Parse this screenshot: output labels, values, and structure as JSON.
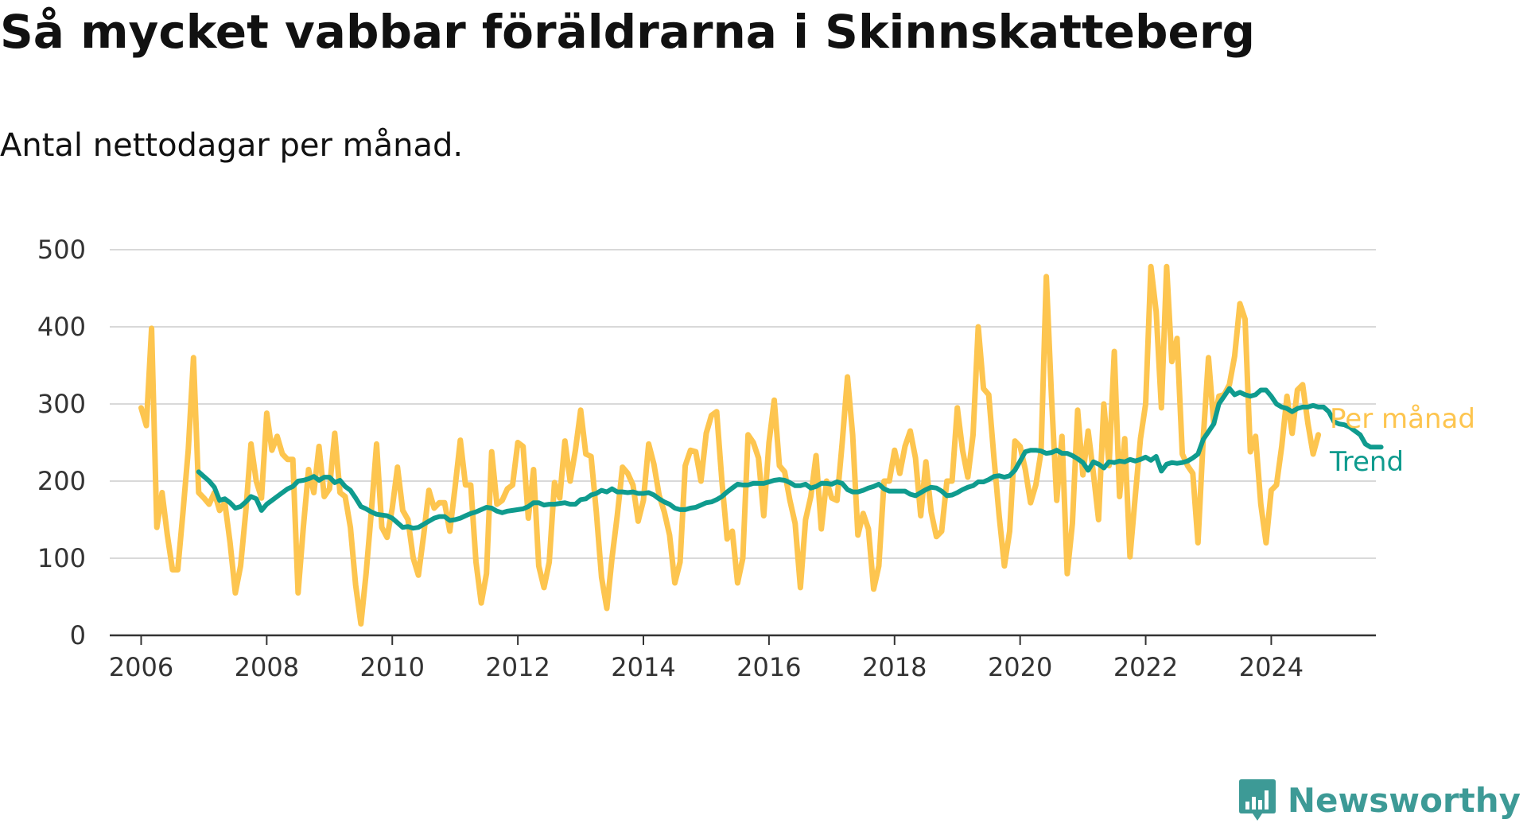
{
  "colors": {
    "monthly": "#fdc54f",
    "trend": "#0f9b8e",
    "grid": "#d9d9d9",
    "axis": "#333333",
    "brand": "#3d9a96"
  },
  "brand": {
    "name": "Newsworthy",
    "icon": "bar-chart-logo-icon"
  },
  "chart_data": {
    "type": "line",
    "title": "Så mycket vabbar föräldrarna i Skinnskatteberg",
    "subtitle": "Antal nettodagar per månad.",
    "xlabel": "",
    "ylabel": "",
    "ylim": [
      0,
      500
    ],
    "xlim": [
      "2005-07",
      "2025-09"
    ],
    "y_ticks": [
      0,
      100,
      200,
      300,
      400,
      500
    ],
    "x_ticks": [
      "2006",
      "2008",
      "2010",
      "2012",
      "2014",
      "2016",
      "2018",
      "2020",
      "2022",
      "2024"
    ],
    "grid": true,
    "legend": "direct labels at line ends",
    "x_start": "2006-01",
    "x_interval": "month",
    "series": [
      {
        "name": "Per månad",
        "color": "#fdc54f",
        "values": [
          295,
          272,
          398,
          140,
          185,
          130,
          85,
          85,
          160,
          240,
          360,
          185,
          178,
          170,
          185,
          162,
          172,
          120,
          55,
          90,
          160,
          248,
          200,
          178,
          288,
          240,
          258,
          235,
          228,
          228,
          55,
          140,
          215,
          185,
          245,
          180,
          190,
          262,
          185,
          180,
          140,
          65,
          15,
          80,
          160,
          248,
          140,
          127,
          165,
          218,
          162,
          150,
          100,
          78,
          130,
          188,
          165,
          172,
          172,
          135,
          192,
          253,
          195,
          195,
          95,
          42,
          80,
          238,
          170,
          175,
          190,
          195,
          250,
          245,
          152,
          215,
          90,
          62,
          95,
          198,
          178,
          252,
          200,
          240,
          292,
          235,
          232,
          160,
          75,
          35,
          100,
          155,
          218,
          210,
          195,
          148,
          175,
          248,
          222,
          182,
          160,
          130,
          68,
          95,
          220,
          240,
          238,
          200,
          262,
          285,
          290,
          200,
          125,
          135,
          68,
          100,
          260,
          250,
          230,
          155,
          250,
          305,
          220,
          212,
          175,
          145,
          62,
          150,
          180,
          233,
          138,
          200,
          178,
          175,
          250,
          335,
          260,
          130,
          158,
          138,
          60,
          90,
          200,
          200,
          240,
          210,
          245,
          265,
          230,
          155,
          225,
          160,
          128,
          135,
          200,
          200,
          295,
          240,
          205,
          260,
          400,
          320,
          312,
          230,
          155,
          90,
          135,
          252,
          245,
          215,
          172,
          195,
          238,
          465,
          310,
          175,
          258,
          80,
          145,
          292,
          208,
          265,
          210,
          150,
          300,
          220,
          368,
          180,
          255,
          102,
          180,
          255,
          300,
          478,
          420,
          295,
          478,
          355,
          385,
          235,
          220,
          210,
          120,
          255,
          360,
          275,
          310,
          312,
          325,
          362,
          430,
          410,
          238,
          258,
          170,
          120,
          188,
          195,
          245,
          310,
          262,
          318,
          325,
          275,
          235,
          260
        ]
      },
      {
        "name": "Trend",
        "color": "#0f9b8e",
        "start": "2006-12",
        "values": [
          212,
          206,
          200,
          192,
          175,
          177,
          172,
          165,
          167,
          173,
          180,
          177,
          162,
          170,
          175,
          180,
          185,
          190,
          193,
          200,
          201,
          203,
          206,
          201,
          205,
          205,
          198,
          201,
          193,
          188,
          178,
          167,
          164,
          160,
          157,
          156,
          155,
          152,
          146,
          140,
          141,
          139,
          140,
          144,
          148,
          152,
          154,
          154,
          149,
          150,
          152,
          155,
          158,
          160,
          163,
          166,
          165,
          161,
          159,
          161,
          162,
          163,
          164,
          167,
          172,
          172,
          169,
          170,
          170,
          171,
          172,
          170,
          170,
          176,
          177,
          182,
          184,
          188,
          186,
          190,
          186,
          186,
          185,
          186,
          184,
          184,
          185,
          182,
          177,
          173,
          170,
          165,
          163,
          163,
          165,
          166,
          169,
          172,
          173,
          176,
          180,
          186,
          191,
          196,
          195,
          195,
          197,
          197,
          197,
          199,
          201,
          202,
          201,
          198,
          194,
          194,
          196,
          191,
          193,
          197,
          197,
          196,
          199,
          197,
          189,
          186,
          186,
          188,
          191,
          193,
          196,
          190,
          187,
          187,
          187,
          187,
          183,
          181,
          185,
          189,
          192,
          191,
          187,
          181,
          182,
          185,
          189,
          192,
          194,
          199,
          199,
          202,
          206,
          207,
          205,
          207,
          214,
          226,
          238,
          240,
          240,
          239,
          236,
          237,
          240,
          236,
          236,
          233,
          229,
          224,
          214,
          225,
          222,
          217,
          225,
          224,
          226,
          225,
          228,
          226,
          228,
          231,
          227,
          232,
          213,
          222,
          224,
          223,
          224,
          226,
          230,
          235,
          254,
          264,
          274,
          300,
          310,
          320,
          312,
          315,
          312,
          310,
          312,
          318,
          318,
          310,
          300,
          296,
          294,
          290,
          294,
          296,
          296,
          298,
          296,
          296,
          290,
          277,
          274,
          273,
          270,
          265,
          260,
          248,
          244,
          244,
          244
        ]
      }
    ]
  }
}
